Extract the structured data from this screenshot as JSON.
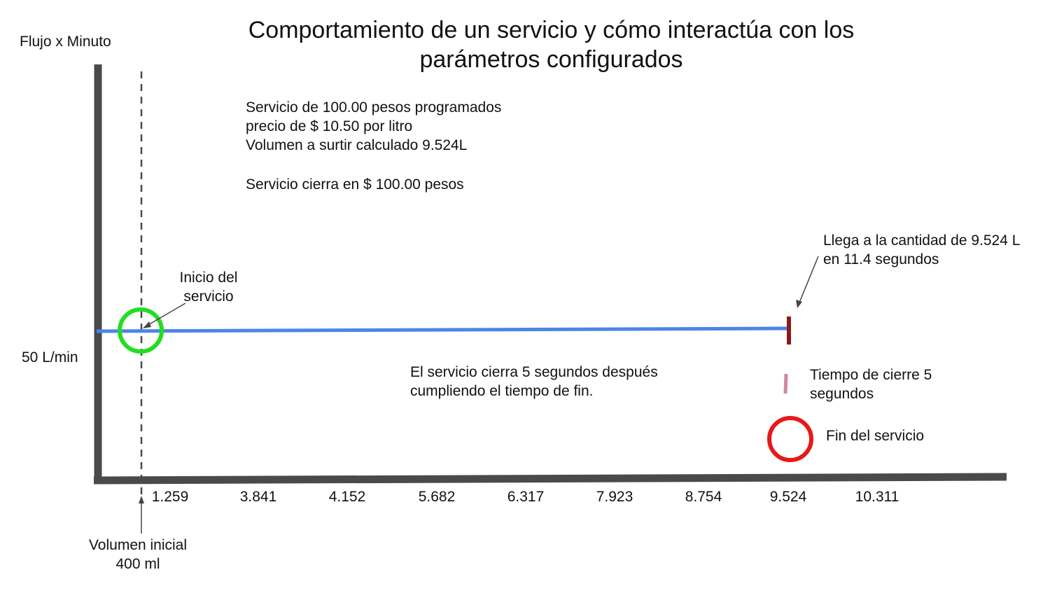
{
  "title": {
    "line1": "Comportamiento de un servicio y cómo interactúa con los",
    "line2": "parámetros configurados"
  },
  "y_axis": {
    "label": "Flujo x Minuto",
    "flow_label": "50 L/min"
  },
  "x_axis": {
    "ticks": [
      "1.259",
      "3.841",
      "4.152",
      "5.682",
      "6.317",
      "7.923",
      "8.754",
      "9.524",
      "10.311"
    ]
  },
  "info_block": {
    "line1": "Servicio de 100.00 pesos programados",
    "line2": "precio de $ 10.50 por litro",
    "line3": "Volumen a surtir calculado 9.524L",
    "line4": "Servicio cierra en $ 100.00 pesos"
  },
  "annotations": {
    "start_service": {
      "line1": "Inicio del",
      "line2": "servicio"
    },
    "reach_quantity": {
      "line1": "Llega a la cantidad de 9.524 L",
      "line2": "en 11.4 segundos"
    },
    "closing_note": {
      "line1": "El servicio cierra 5 segundos después",
      "line2": "cumpliendo el tiempo de fin."
    },
    "initial_volume": {
      "line1": "Volumen inicial",
      "line2": "400 ml"
    }
  },
  "legend": {
    "closing_time": {
      "line1": "Tiempo de cierre 5",
      "line2": "segundos"
    },
    "end_service": "Fin del servicio"
  },
  "colors": {
    "axis": "#4a4a4a",
    "flow_line": "#4a86e8",
    "start_circle": "#22dd22",
    "quantity_marker": "#8b1a1a",
    "closing_marker": "#c98aa6",
    "end_circle": "#e81818"
  }
}
